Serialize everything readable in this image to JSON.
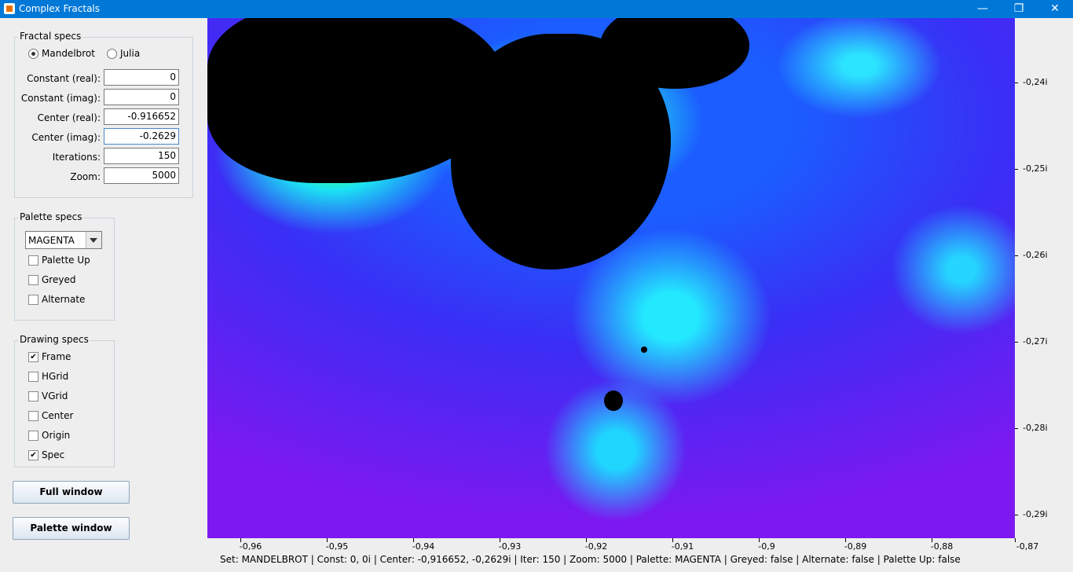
{
  "window": {
    "title": "Complex Fractals",
    "icon": "java-cup-icon",
    "controls": [
      "minimize-icon",
      "maximize-icon",
      "close-icon"
    ]
  },
  "fractal_specs": {
    "title": "Fractal specs",
    "set_options": [
      {
        "label": "Mandelbrot",
        "selected": true
      },
      {
        "label": "Julia",
        "selected": false
      }
    ],
    "fields": [
      {
        "label": "Constant (real):",
        "value": "0"
      },
      {
        "label": "Constant (imag):",
        "value": "0"
      },
      {
        "label": "Center (real):",
        "value": "-0.916652"
      },
      {
        "label": "Center (imag):",
        "value": "-0.2629"
      },
      {
        "label": "Iterations:",
        "value": "150"
      },
      {
        "label": "Zoom:",
        "value": "5000"
      }
    ]
  },
  "palette_specs": {
    "title": "Palette specs",
    "palette": "MAGENTA",
    "options": [
      {
        "label": "Palette Up",
        "checked": false
      },
      {
        "label": "Greyed",
        "checked": false
      },
      {
        "label": "Alternate",
        "checked": false
      }
    ]
  },
  "drawing_specs": {
    "title": "Drawing specs",
    "options": [
      {
        "label": "Frame",
        "checked": true
      },
      {
        "label": "HGrid",
        "checked": false
      },
      {
        "label": "VGrid",
        "checked": false
      },
      {
        "label": "Center",
        "checked": false
      },
      {
        "label": "Origin",
        "checked": false
      },
      {
        "label": "Spec",
        "checked": true
      }
    ]
  },
  "buttons": {
    "full_window": "Full window",
    "palette_window": "Palette window"
  },
  "axes": {
    "y_labels": [
      "-0,24i",
      "-0,25i",
      "-0,26i",
      "-0,27i",
      "-0,28i",
      "-0,29i"
    ],
    "x_labels": [
      "-0,96",
      "-0,95",
      "-0,94",
      "-0,93",
      "-0,92",
      "-0,91",
      "-0,9",
      "-0,89",
      "-0,88",
      "-0,87"
    ]
  },
  "status_bar": "Set: MANDELBROT | Const: 0, 0i | Center: -0,916652, -0,2629i | Iter: 150 | Zoom: 5000 | Palette: MAGENTA | Greyed: false | Alternate: false | Palette Up: false",
  "colors": {
    "titlebar": "#0078d7",
    "fractal_interior": "#000000",
    "fractal_outer_low": "#7e18f0",
    "fractal_outer_high": "#1b5dff",
    "fractal_edge": "#21d9f0"
  }
}
